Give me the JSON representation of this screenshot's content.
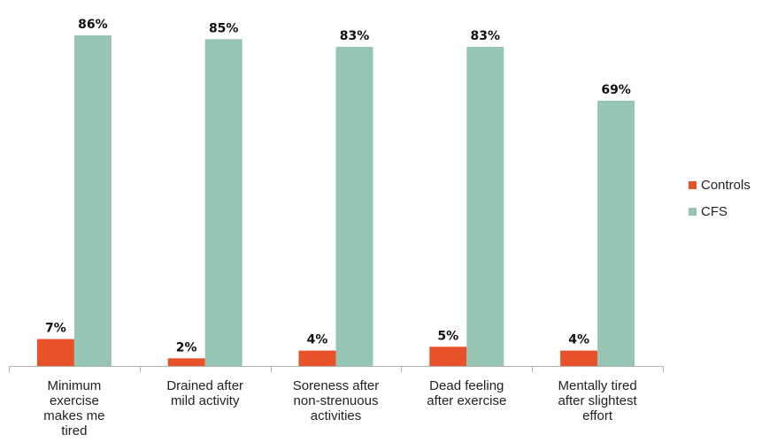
{
  "chart_data": {
    "type": "bar",
    "title": "",
    "xlabel": "",
    "ylabel": "",
    "ylim": [
      0,
      90
    ],
    "grid": false,
    "legend_position": "right",
    "categories": [
      [
        "Minimum",
        "exercise",
        "makes me",
        "tired"
      ],
      [
        "Drained after",
        "mild activity"
      ],
      [
        "Soreness after",
        "non-strenuous",
        "activities"
      ],
      [
        "Dead feeling",
        "after exercise"
      ],
      [
        "Mentally tired",
        "after slightest",
        "effort"
      ]
    ],
    "series": [
      {
        "name": "Controls",
        "color": "#e8522a",
        "values": [
          7,
          2,
          4,
          5,
          4
        ],
        "labels": [
          "7%",
          "2%",
          "4%",
          "5%",
          "4%"
        ]
      },
      {
        "name": "CFS",
        "color": "#96c6b3",
        "values": [
          86,
          85,
          83,
          83,
          69
        ],
        "labels": [
          "86%",
          "85%",
          "83%",
          "83%",
          "69%"
        ]
      }
    ]
  }
}
